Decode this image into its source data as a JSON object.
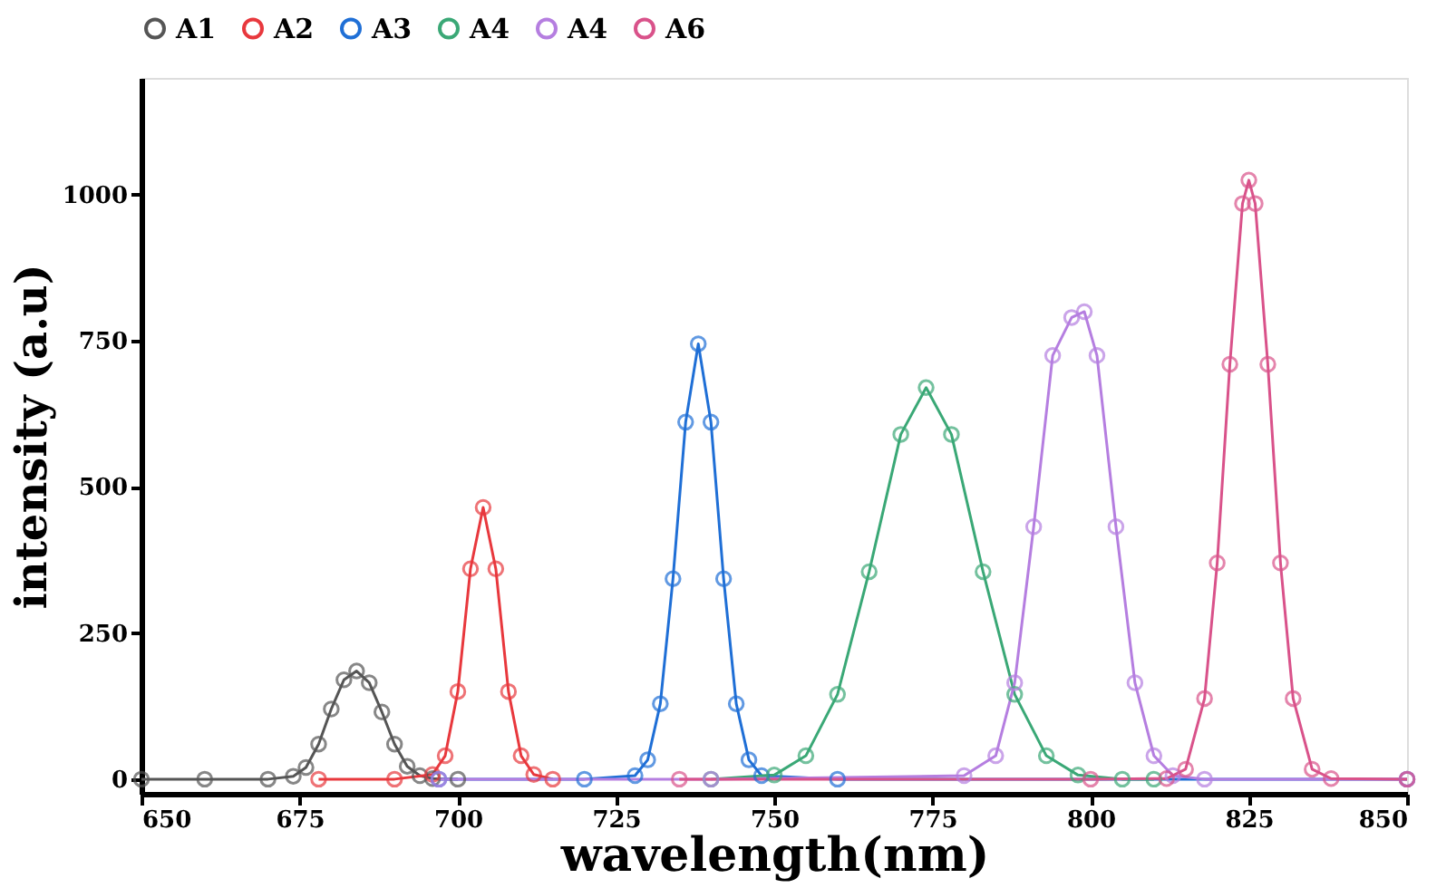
{
  "chart_data": {
    "type": "line",
    "xlabel": "wavelength(nm)",
    "ylabel": "intensity (a.u)",
    "xlim": [
      650,
      850
    ],
    "xticks": [
      650,
      675,
      700,
      725,
      750,
      775,
      800,
      825,
      850
    ],
    "ylim": [
      -25,
      1200
    ],
    "yticks": [
      0,
      250,
      500,
      750,
      1000
    ],
    "grid": false,
    "legend": "top",
    "marker": "circle",
    "line_style": "solid",
    "series": [
      {
        "name": "A1",
        "color": "#555555",
        "x": [
          650,
          660,
          670,
          674,
          676,
          678,
          680,
          682,
          684,
          686,
          688,
          690,
          692,
          694,
          696,
          700
        ],
        "values": [
          0,
          0,
          0,
          5,
          20,
          60,
          120,
          170,
          185,
          165,
          115,
          60,
          22,
          6,
          1,
          0
        ]
      },
      {
        "name": "A2",
        "color": "#e8383d",
        "x": [
          678,
          690,
          696,
          698,
          700,
          702,
          704,
          706,
          708,
          710,
          712,
          715
        ],
        "values": [
          0,
          0,
          8,
          40,
          150,
          360,
          465,
          360,
          150,
          40,
          8,
          0
        ]
      },
      {
        "name": "A3",
        "color": "#1f6fd6",
        "x": [
          697,
          720,
          728,
          730,
          732,
          734,
          736,
          738,
          740,
          742,
          744,
          746,
          748,
          760,
          850
        ],
        "values": [
          0,
          0,
          6,
          33,
          129,
          343,
          611,
          745,
          611,
          343,
          129,
          33,
          6,
          0,
          0
        ]
      },
      {
        "name": "A4",
        "color": "#3aa876",
        "x": [
          740,
          750,
          755,
          760,
          765,
          770,
          774,
          778,
          783,
          788,
          793,
          798,
          805,
          810
        ],
        "values": [
          0,
          7,
          40,
          145,
          355,
          590,
          670,
          590,
          355,
          145,
          40,
          7,
          0,
          0
        ]
      },
      {
        "name": "A4",
        "color": "#b57ee0",
        "x": [
          697,
          740,
          780,
          785,
          788,
          791,
          794,
          797,
          799,
          801,
          804,
          807,
          810,
          813,
          818,
          850
        ],
        "values": [
          0,
          0,
          6,
          40,
          165,
          432,
          725,
          790,
          800,
          725,
          432,
          165,
          40,
          6,
          0,
          0
        ]
      },
      {
        "name": "A6",
        "color": "#d9528a",
        "x": [
          735,
          800,
          812,
          815,
          818,
          820,
          822,
          824,
          825,
          826,
          828,
          830,
          832,
          835,
          838,
          850
        ],
        "values": [
          0,
          0,
          1,
          17,
          138,
          370,
          710,
          985,
          1025,
          985,
          710,
          370,
          138,
          17,
          1,
          0
        ]
      }
    ]
  }
}
